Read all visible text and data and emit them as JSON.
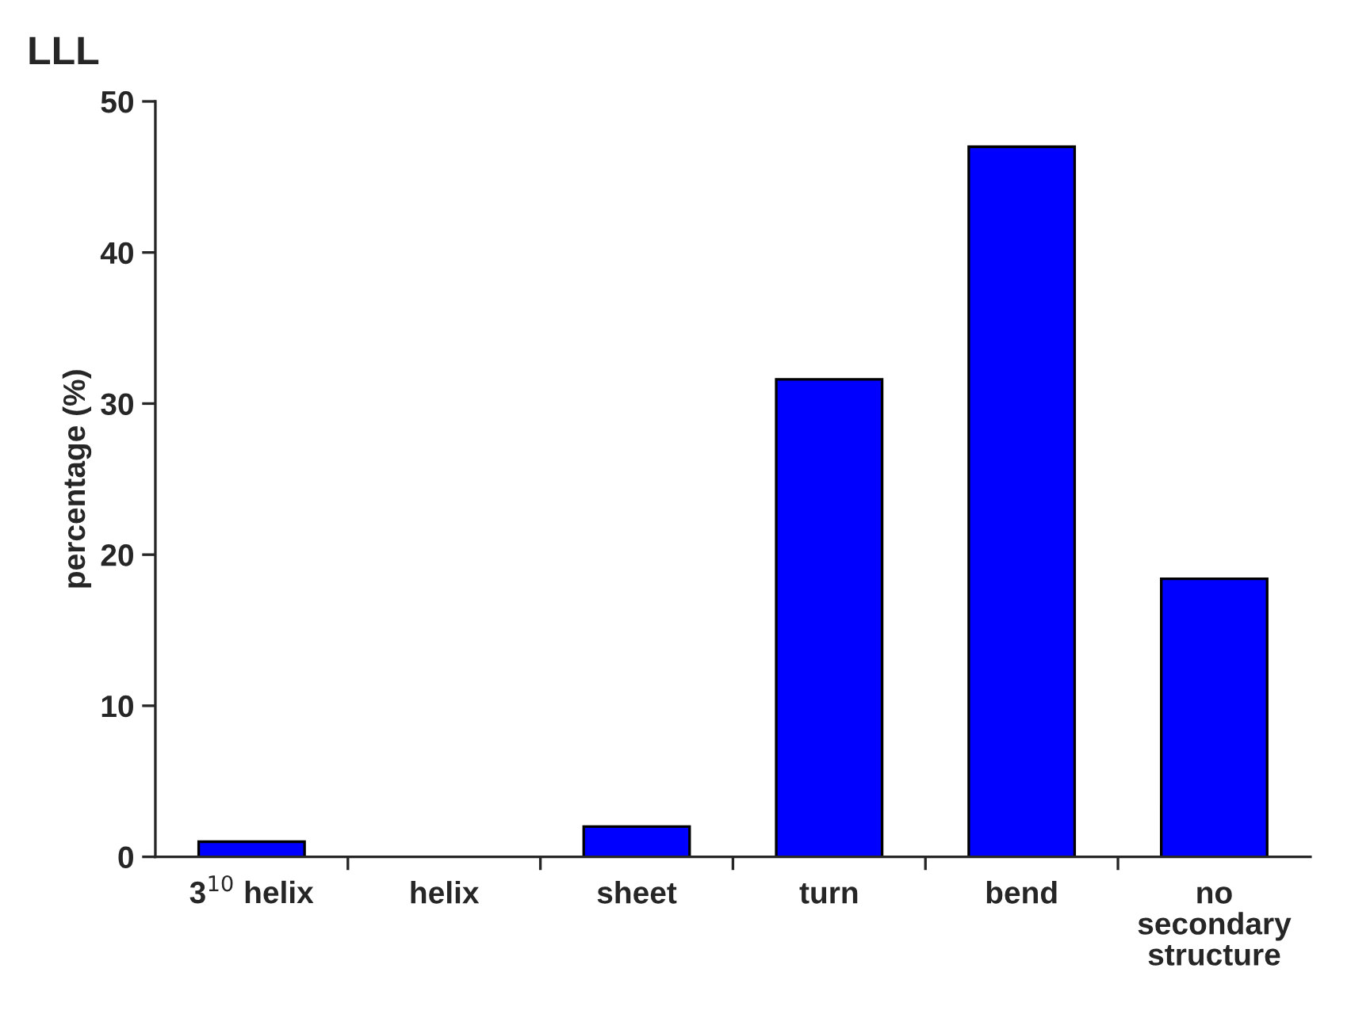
{
  "chart_data": {
    "type": "bar",
    "title": "LLL",
    "ylabel": "percentage (%)",
    "categories": [
      "3$^{10}$ helix",
      "helix",
      "sheet",
      "turn",
      "bend",
      "no\nsecondary\nstructure"
    ],
    "values": [
      1,
      0,
      2,
      31.6,
      47,
      18.4
    ],
    "color": "#0000ff",
    "ylim": [
      0,
      50
    ],
    "yticks": [
      0,
      10,
      20,
      30,
      40,
      50
    ],
    "grid": false,
    "legend": false
  }
}
